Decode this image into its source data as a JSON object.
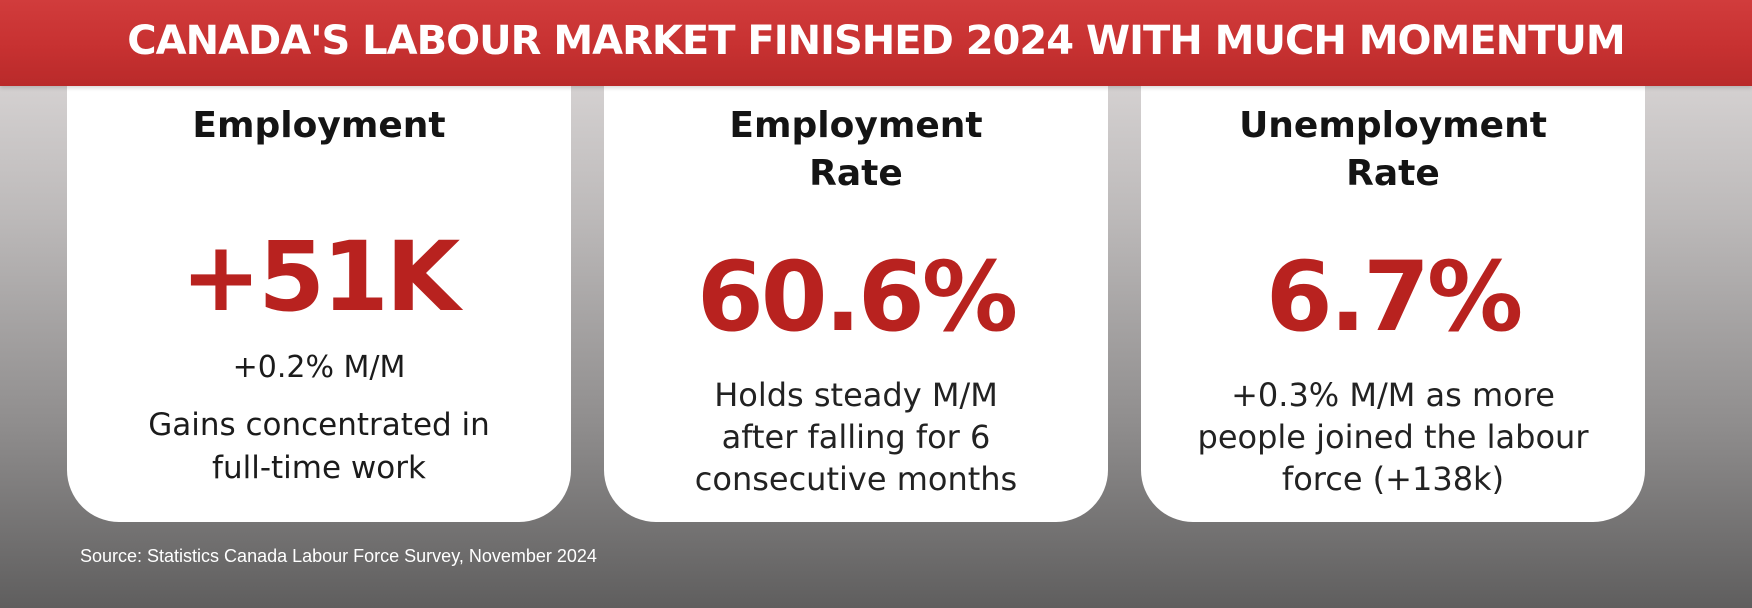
{
  "banner": {
    "title": "CANADA'S LABOUR MARKET FINISHED 2024 WITH MUCH MOMENTUM"
  },
  "cards": [
    {
      "title_line1": "Employment",
      "title_line2": "",
      "value": "+51K",
      "sub": "+0.2% M/M",
      "desc_line1": "Gains concentrated in",
      "desc_line2": "full-time work"
    },
    {
      "title_line1": "Employment",
      "title_line2": "Rate",
      "value": "60.6%",
      "desc_line1": "Holds steady M/M",
      "desc_line2": "after falling for 6",
      "desc_line3": "consecutive months"
    },
    {
      "title_line1": "Unemployment",
      "title_line2": "Rate",
      "value": "6.7%",
      "desc_line1": "+0.3% M/M as more",
      "desc_line2": "people joined the labour",
      "desc_line3": "force (+138k)"
    }
  ],
  "source": "Source: Statistics Canada Labour Force Survey, November 2024",
  "colors": {
    "banner": "#c73131",
    "value_red": "#b8221f",
    "card_bg": "#ffffff",
    "text_dark": "#141414"
  }
}
